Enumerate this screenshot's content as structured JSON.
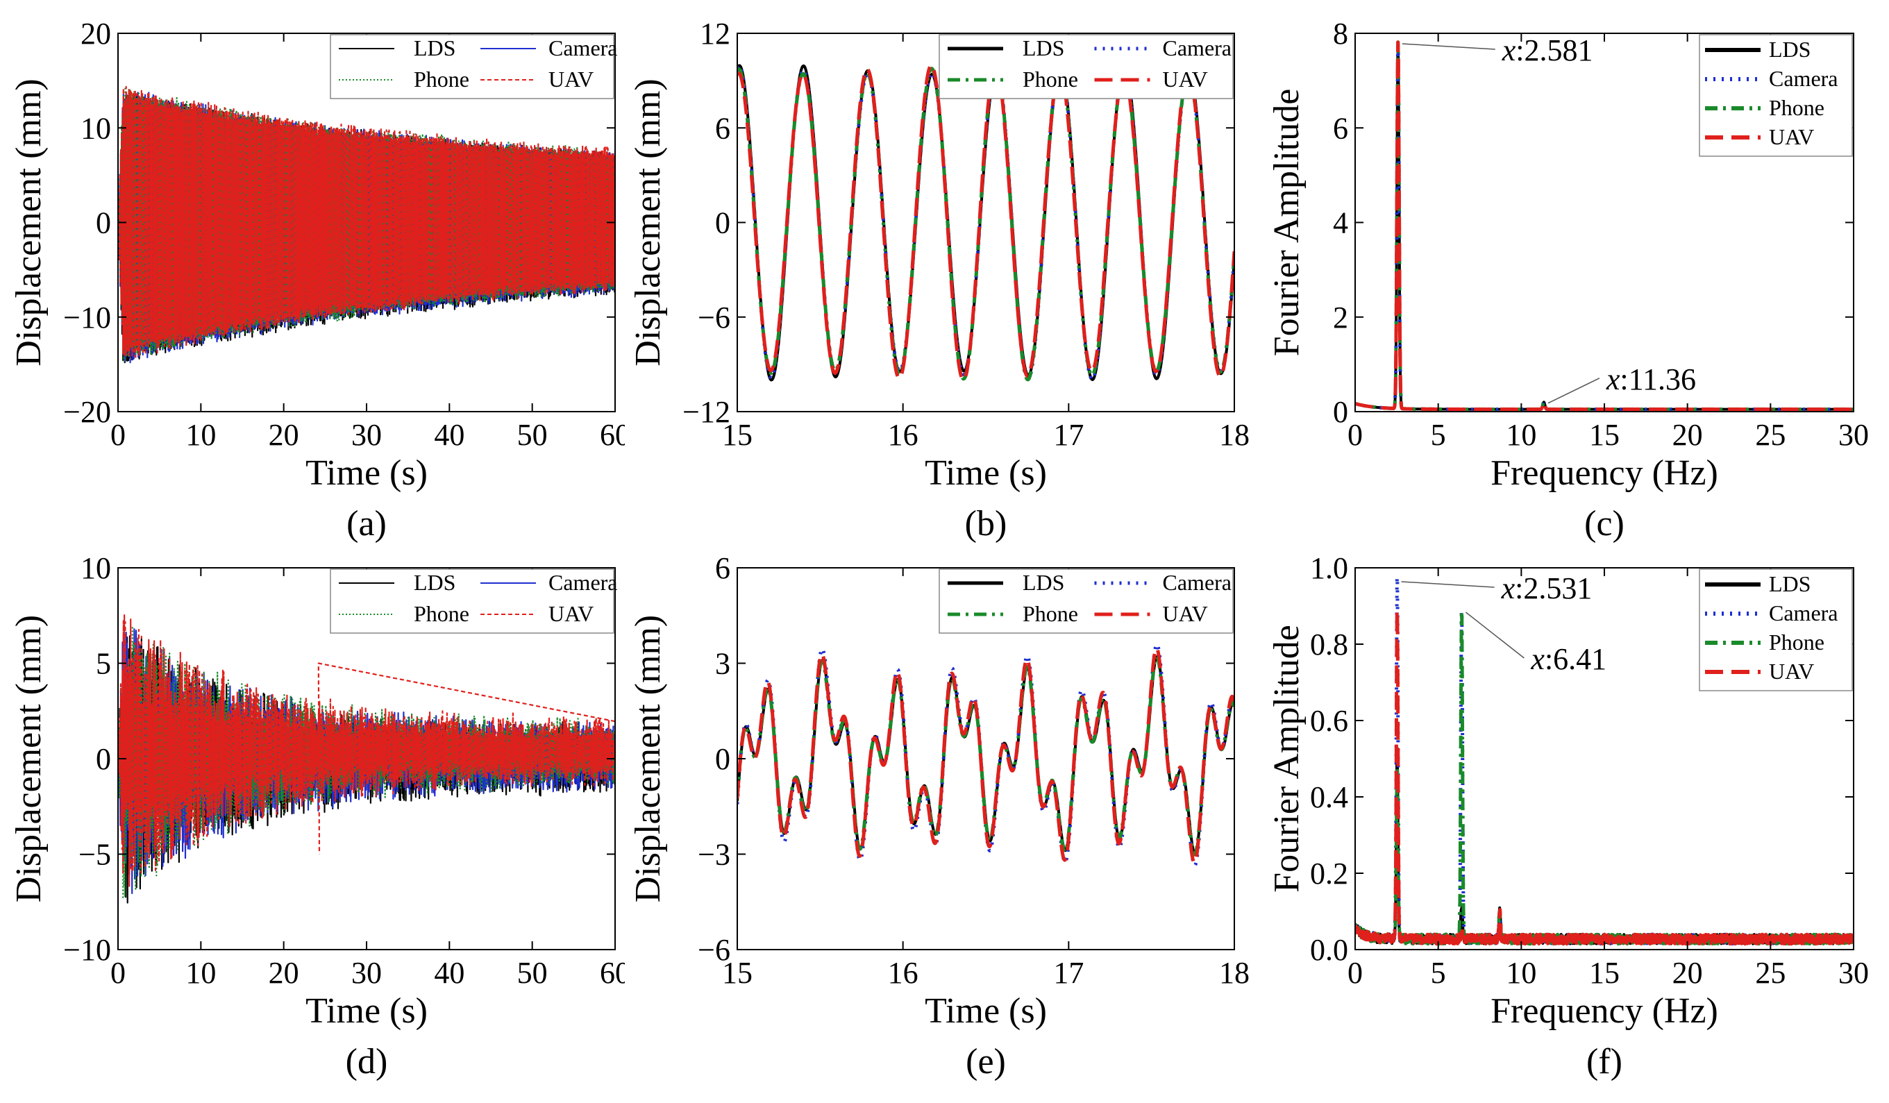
{
  "legend_labels": {
    "lds": "LDS",
    "camera": "Camera",
    "phone": "Phone",
    "uav": "UAV"
  },
  "colors": {
    "LDS": "#000000",
    "Camera": "#1f2fd0",
    "Phone": "#1a8a2a",
    "UAV": "#e0201c"
  },
  "chart_data": [
    {
      "id": "a",
      "caption": "(a)",
      "type": "line",
      "xlabel": "Time (s)",
      "ylabel": "Displacement (mm)",
      "xlim": [
        0,
        60
      ],
      "ylim": [
        -20,
        20
      ],
      "xticks": [
        "0",
        "10",
        "20",
        "30",
        "40",
        "50",
        "60"
      ],
      "yticks": [
        "20",
        "10",
        "0",
        "−10",
        "−20"
      ],
      "legend_style": "thin",
      "legend_placement": "top-right",
      "signal": {
        "kind": "decay",
        "freq_hz": 2.581,
        "peak": [
          14,
          -15
        ],
        "end": [
          5,
          -5
        ]
      },
      "series": [
        {
          "name": "LDS",
          "style": "solid"
        },
        {
          "name": "Camera",
          "style": "solid"
        },
        {
          "name": "Phone",
          "style": "dotted"
        },
        {
          "name": "UAV",
          "style": "dashed"
        }
      ]
    },
    {
      "id": "b",
      "caption": "(b)",
      "type": "line",
      "xlabel": "Time (s)",
      "ylabel": "Displacement (mm)",
      "xlim": [
        15,
        18
      ],
      "ylim": [
        -12,
        12
      ],
      "xticks": [
        "15",
        "16",
        "17",
        "18"
      ],
      "yticks": [
        "12",
        "6",
        "0",
        "−6",
        "−12"
      ],
      "legend_style": "thick",
      "legend_placement": "top-right",
      "signal": {
        "kind": "sine",
        "freq_hz": 2.581,
        "amplitude": 10
      },
      "series": [
        {
          "name": "LDS",
          "style": "solid"
        },
        {
          "name": "Camera",
          "style": "dotted"
        },
        {
          "name": "Phone",
          "style": "dashdot"
        },
        {
          "name": "UAV",
          "style": "dashed"
        }
      ]
    },
    {
      "id": "c",
      "caption": "(c)",
      "type": "line",
      "xlabel": "Frequency (Hz)",
      "ylabel": "Fourier Amplitude",
      "xlim": [
        0,
        30
      ],
      "ylim": [
        0,
        8
      ],
      "xticks": [
        "0",
        "5",
        "10",
        "15",
        "20",
        "25",
        "30"
      ],
      "yticks": [
        "8",
        "6",
        "4",
        "2",
        "0"
      ],
      "legend_style": "thick-vertical",
      "legend_placement": "top-right",
      "signal": {
        "kind": "spectrum",
        "peaks": [
          {
            "x": 2.581,
            "y": 7.75
          },
          {
            "x": 11.36,
            "y": 0.15
          }
        ]
      },
      "annotations": [
        {
          "text": "x:2.581",
          "x": 2.581,
          "y": 7.75
        },
        {
          "text": "x:11.36",
          "x": 11.36,
          "y": 0.15
        }
      ],
      "series": [
        {
          "name": "LDS",
          "style": "solid"
        },
        {
          "name": "Camera",
          "style": "dotted"
        },
        {
          "name": "Phone",
          "style": "dashdot"
        },
        {
          "name": "UAV",
          "style": "dashed"
        }
      ]
    },
    {
      "id": "d",
      "caption": "(d)",
      "type": "line",
      "xlabel": "Time (s)",
      "ylabel": "Displacement (mm)",
      "xlim": [
        0,
        60
      ],
      "ylim": [
        -10,
        10
      ],
      "xticks": [
        "0",
        "10",
        "20",
        "30",
        "40",
        "50",
        "60"
      ],
      "yticks": [
        "10",
        "5",
        "0",
        "−5",
        "−10"
      ],
      "legend_style": "thin",
      "legend_placement": "top-right",
      "signal": {
        "kind": "decay-noisy",
        "freq_hz": 2.531,
        "peak": [
          7.5,
          -8
        ],
        "end": [
          1.5,
          -1.5
        ]
      },
      "series": [
        {
          "name": "LDS",
          "style": "solid"
        },
        {
          "name": "Camera",
          "style": "solid"
        },
        {
          "name": "Phone",
          "style": "dotted"
        },
        {
          "name": "UAV",
          "style": "dashed"
        }
      ]
    },
    {
      "id": "e",
      "caption": "(e)",
      "type": "line",
      "xlabel": "Time (s)",
      "ylabel": "Displacement (mm)",
      "xlim": [
        15,
        18
      ],
      "ylim": [
        -6,
        6
      ],
      "xticks": [
        "15",
        "16",
        "17",
        "18"
      ],
      "yticks": [
        "6",
        "3",
        "0",
        "−3",
        "−6"
      ],
      "legend_style": "thick",
      "legend_placement": "top-right",
      "signal": {
        "kind": "two-mode",
        "f1": 2.531,
        "a1": 1.8,
        "f2": 6.41,
        "a2": 1.2
      },
      "series": [
        {
          "name": "LDS",
          "style": "solid"
        },
        {
          "name": "Camera",
          "style": "dotted"
        },
        {
          "name": "Phone",
          "style": "dashdot"
        },
        {
          "name": "UAV",
          "style": "dashed"
        }
      ]
    },
    {
      "id": "f",
      "caption": "(f)",
      "type": "line",
      "xlabel": "Frequency (Hz)",
      "ylabel": "Fourier Amplitude",
      "xlim": [
        0,
        30
      ],
      "ylim": [
        0,
        1.0
      ],
      "xticks": [
        "0",
        "5",
        "10",
        "15",
        "20",
        "25",
        "30"
      ],
      "yticks": [
        "1.0",
        "0.8",
        "0.6",
        "0.4",
        "0.2",
        "0.0"
      ],
      "legend_style": "thick-vertical",
      "legend_placement": "top-right",
      "signal": {
        "kind": "spectrum2",
        "peaks": [
          {
            "x": 2.531,
            "y": 0.96
          },
          {
            "x": 6.41,
            "y": 0.88
          },
          {
            "x": 8.7,
            "y": 0.07
          }
        ]
      },
      "annotations": [
        {
          "text": "x:2.531",
          "x": 2.531,
          "y": 0.96
        },
        {
          "text": "x:6.41",
          "x": 6.41,
          "y": 0.88
        }
      ],
      "series": [
        {
          "name": "LDS",
          "style": "solid"
        },
        {
          "name": "Camera",
          "style": "dotted"
        },
        {
          "name": "Phone",
          "style": "dashdot"
        },
        {
          "name": "UAV",
          "style": "dashed"
        }
      ]
    }
  ]
}
